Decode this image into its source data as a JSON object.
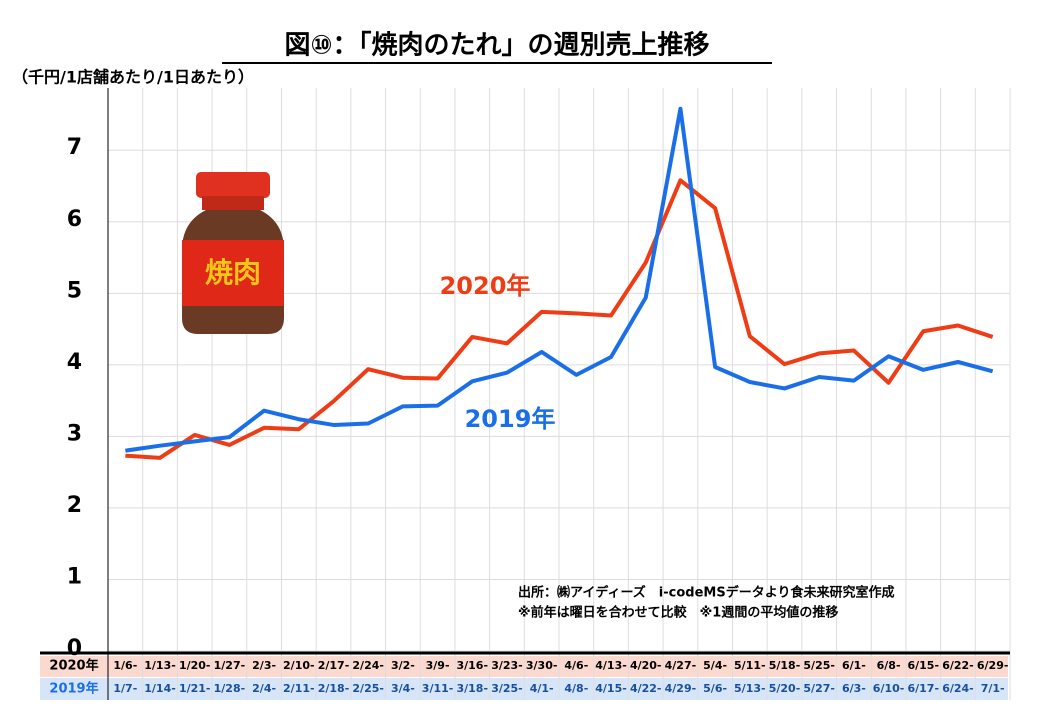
{
  "chart_data": {
    "type": "line",
    "title": "図⑩：「焼肉のたれ」の週別売上推移",
    "y_axis_label": "（千円/1店舗あたり/1日あたり）",
    "ylim": [
      0,
      7.87
    ],
    "yticks": [
      0,
      1,
      2,
      3,
      4,
      5,
      6,
      7
    ],
    "grid": true,
    "illustration_label": "焼肉",
    "source_note": [
      "出所：㈱アイディーズ　i-codeMSデータより食未来研究室作成",
      "※前年は曜日を合わせて比較　※1週間の平均値の推移"
    ],
    "series": [
      {
        "name": "2020年",
        "color": "#f03c14",
        "week_labels": [
          "1/6-",
          "1/13-",
          "1/20-",
          "1/27-",
          "2/3-",
          "2/10-",
          "2/17-",
          "2/24-",
          "3/2-",
          "3/9-",
          "3/16-",
          "3/23-",
          "3/30-",
          "4/6-",
          "4/13-",
          "4/20-",
          "4/27-",
          "5/4-",
          "5/11-",
          "5/18-",
          "5/25-",
          "6/1-",
          "6/8-",
          "6/15-",
          "6/22-",
          "6/29-"
        ],
        "values": [
          2.73,
          2.7,
          3.02,
          2.88,
          3.12,
          3.1,
          3.49,
          3.94,
          3.82,
          3.81,
          4.39,
          4.3,
          4.74,
          4.72,
          4.69,
          5.43,
          6.58,
          6.19,
          4.4,
          4.01,
          4.16,
          4.2,
          3.75,
          4.47,
          4.55,
          4.39
        ]
      },
      {
        "name": "2019年",
        "color": "#1a6fe8",
        "week_labels": [
          "1/7-",
          "1/14-",
          "1/21-",
          "1/28-",
          "2/4-",
          "2/11-",
          "2/18-",
          "2/25-",
          "3/4-",
          "3/11-",
          "3/18-",
          "3/25-",
          "4/1-",
          "4/8-",
          "4/15-",
          "4/22-",
          "4/29-",
          "5/6-",
          "5/13-",
          "5/20-",
          "5/27-",
          "6/3-",
          "6/10-",
          "6/17-",
          "6/24-",
          "7/1-"
        ],
        "values": [
          2.8,
          2.87,
          2.93,
          2.99,
          3.36,
          3.24,
          3.16,
          3.18,
          3.42,
          3.43,
          3.77,
          3.89,
          4.18,
          3.86,
          4.11,
          4.94,
          7.58,
          3.97,
          3.76,
          3.67,
          3.83,
          3.78,
          4.12,
          3.93,
          4.04,
          3.91
        ]
      }
    ]
  }
}
